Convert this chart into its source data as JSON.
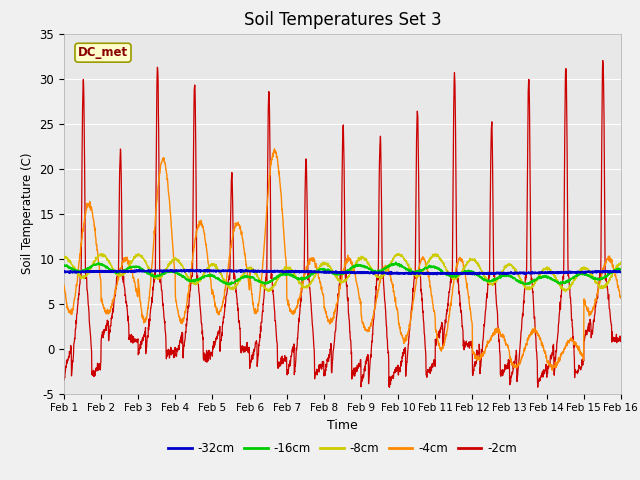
{
  "title": "Soil Temperatures Set 3",
  "xlabel": "Time",
  "ylabel": "Soil Temperature (C)",
  "ylim": [
    -5,
    35
  ],
  "xlim": [
    0,
    15
  ],
  "xtick_labels": [
    "Feb 1",
    "Feb 2",
    "Feb 3",
    "Feb 4",
    "Feb 5",
    "Feb 6",
    "Feb 7",
    "Feb 8",
    "Feb 9",
    "Feb 10",
    "Feb 11",
    "Feb 12",
    "Feb 13",
    "Feb 14",
    "Feb 15",
    "Feb 16"
  ],
  "ytick_values": [
    -5,
    0,
    5,
    10,
    15,
    20,
    25,
    30,
    35
  ],
  "plot_bg": "#e8e8e8",
  "fig_bg": "#f0f0f0",
  "dc_met_label": "DC_met",
  "dc_met_fg": "#880000",
  "dc_met_bg": "#ffffcc",
  "dc_met_edge": "#999900",
  "series_labels": [
    "-32cm",
    "-16cm",
    "-8cm",
    "-4cm",
    "-2cm"
  ],
  "series_colors": [
    "#0000cc",
    "#00cc00",
    "#cccc00",
    "#ff8800",
    "#cc0000"
  ],
  "peak_heights_2cm": [
    30,
    22,
    31.5,
    29.5,
    19.5,
    28.5,
    21,
    24.5,
    23.5,
    26.5,
    30.5,
    25,
    30,
    31.5,
    32
  ],
  "night_mins_2cm": [
    -3,
    1,
    -0.5,
    -1,
    0,
    -2,
    -3,
    -3,
    -4,
    -3,
    0.5,
    -3,
    -4,
    -3,
    1
  ],
  "peak_heights_4cm": [
    16,
    10,
    21,
    14,
    14,
    22,
    10,
    10,
    9,
    10,
    10,
    2,
    2,
    1,
    10
  ],
  "night_mins_4cm": [
    4,
    4,
    3,
    3,
    4,
    4,
    4,
    3,
    2,
    1,
    0,
    -1,
    -2,
    -2,
    4
  ]
}
